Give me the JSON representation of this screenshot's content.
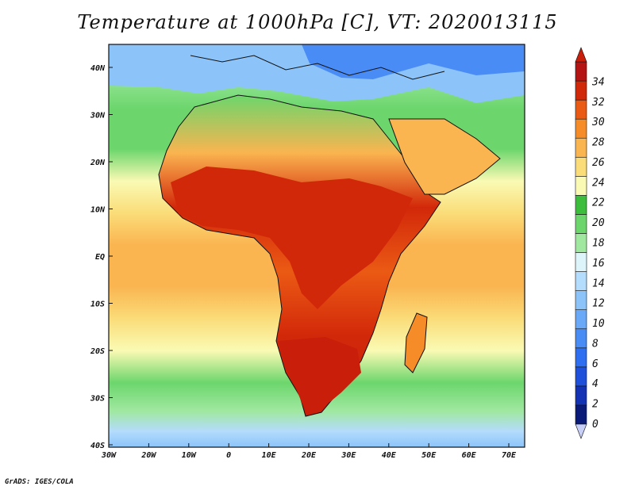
{
  "title": "Temperature at 1000hPa [C], VT: 2020013115",
  "credit": "GrADS: IGES/COLA",
  "map": {
    "lat_labels": [
      "40N",
      "30N",
      "20N",
      "10N",
      "EQ",
      "10S",
      "20S",
      "30S",
      "40S"
    ],
    "lon_labels": [
      "30W",
      "20W",
      "10W",
      "0",
      "10E",
      "20E",
      "30E",
      "40E",
      "50E",
      "60E",
      "70E"
    ]
  },
  "colorbar": {
    "levels": [
      "0",
      "2",
      "4",
      "6",
      "8",
      "10",
      "12",
      "14",
      "16",
      "18",
      "20",
      "22",
      "24",
      "26",
      "28",
      "30",
      "32",
      "34"
    ],
    "colors": [
      "#0a1a78",
      "#1432b4",
      "#1e50dc",
      "#2e6ef0",
      "#4a8cf5",
      "#6aa8f8",
      "#8cc4fa",
      "#b4dcfc",
      "#dcf4fa",
      "#a0e8a0",
      "#6cd66c",
      "#3cbe3c",
      "#fafab4",
      "#fadc78",
      "#fab450",
      "#f58c28",
      "#eb5a14",
      "#d2280a",
      "#b41414"
    ],
    "end_low": "#c8d0f8",
    "end_high": "#c81e0a"
  }
}
